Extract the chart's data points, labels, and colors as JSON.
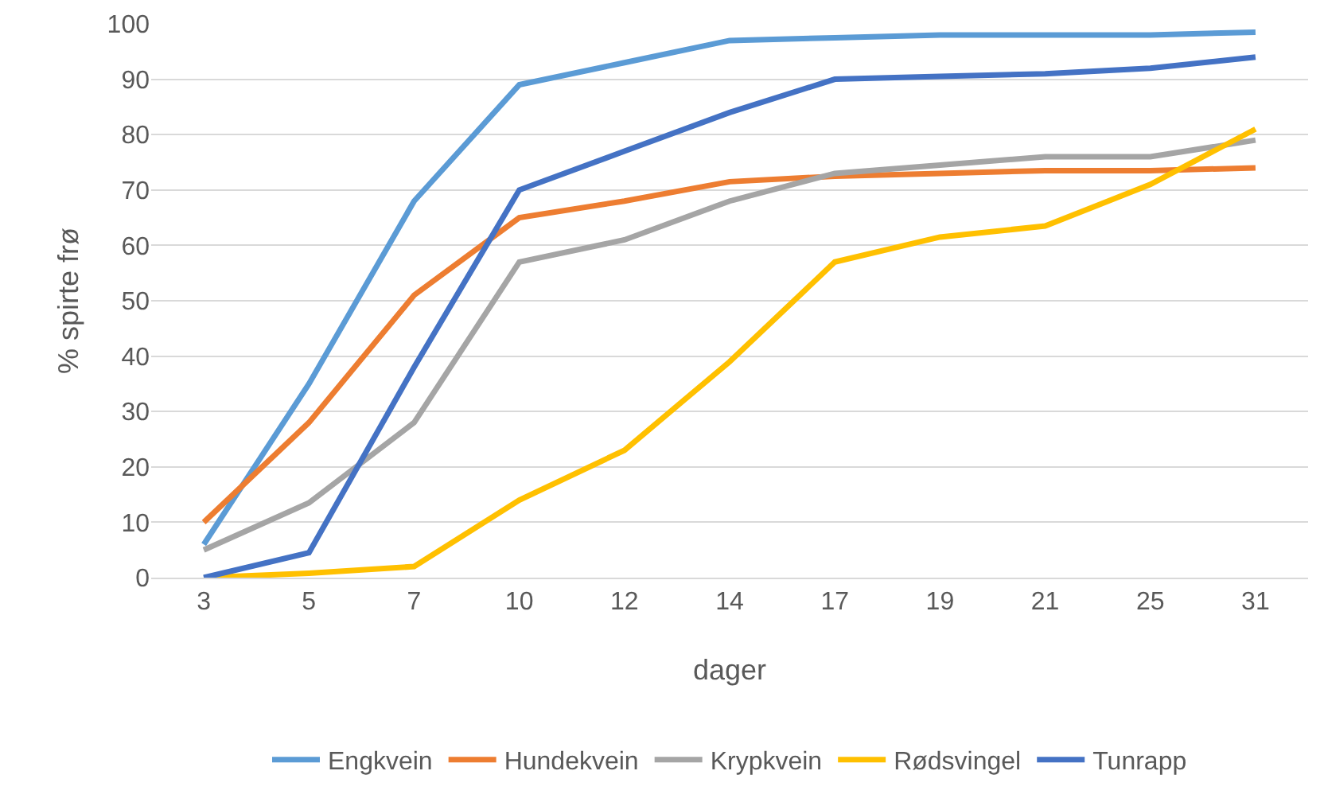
{
  "chart_data": {
    "type": "line",
    "xlabel": "dager",
    "ylabel": "% spirte frø",
    "categories": [
      "3",
      "5",
      "7",
      "10",
      "12",
      "14",
      "17",
      "19",
      "21",
      "25",
      "31"
    ],
    "series": [
      {
        "name": "Engkvein",
        "color": "#5b9bd5",
        "values": [
          6,
          35,
          68,
          89,
          93,
          97,
          97.5,
          98,
          98,
          98,
          98.5
        ]
      },
      {
        "name": "Hundekvein",
        "color": "#ed7d31",
        "values": [
          10,
          28,
          51,
          65,
          68,
          71.5,
          72.5,
          73,
          73.5,
          73.5,
          74
        ]
      },
      {
        "name": "Krypkvein",
        "color": "#a5a5a5",
        "values": [
          5,
          13.5,
          28,
          57,
          61,
          68,
          73,
          74.5,
          76,
          76,
          79
        ]
      },
      {
        "name": "Rødsvingel",
        "color": "#ffc000",
        "values": [
          0,
          0.8,
          2,
          14,
          23,
          39,
          57,
          61.5,
          63.5,
          71,
          81
        ]
      },
      {
        "name": "Tunrapp",
        "color": "#4472c4",
        "values": [
          0,
          4.5,
          38,
          70,
          77,
          84,
          90,
          90.5,
          91,
          92,
          94
        ]
      }
    ],
    "ylim": [
      0,
      100
    ],
    "yticks": [
      0,
      10,
      20,
      30,
      40,
      50,
      60,
      70,
      80,
      90,
      100
    ],
    "grid": "y",
    "legend": "bottom",
    "marker": "none",
    "line_style": "solid"
  }
}
